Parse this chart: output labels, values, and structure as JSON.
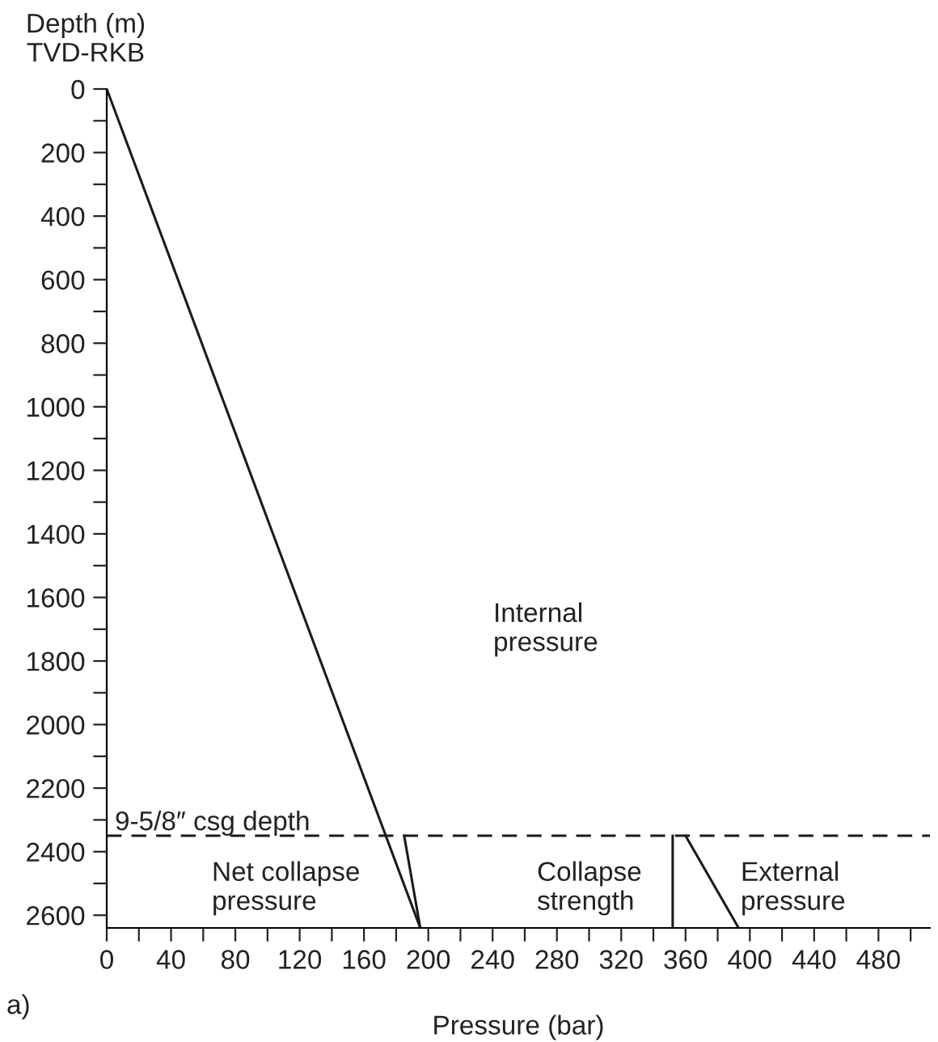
{
  "chart_data": {
    "type": "line",
    "xlabel": "Pressure (bar)",
    "ylabel": "Depth (m)\nTVD-RKB",
    "series": [
      {
        "color": "#1a1a1a",
        "x": [
          0,
          195
        ],
        "values": [
          0,
          2640
        ]
      },
      {
        "color": "#1a1a1a",
        "x": [
          185,
          195
        ],
        "values": [
          2350,
          2640
        ]
      },
      {
        "color": "#1a1a1a",
        "x": [
          352,
          352
        ],
        "values": [
          2350,
          2640
        ]
      },
      {
        "color": "#1a1a1a",
        "x": [
          360,
          393
        ],
        "values": [
          2350,
          2640
        ]
      }
    ],
    "xlim": [
      0,
      512
    ],
    "ylim": [
      2640,
      0
    ],
    "xticks": [
      0,
      {
        "value": 20,
        "label": null
      },
      40,
      {
        "value": 60,
        "label": null
      },
      80,
      {
        "value": 100,
        "label": null
      },
      120,
      {
        "value": 140,
        "label": null
      },
      160,
      {
        "value": 180,
        "label": null
      },
      200,
      {
        "value": 220,
        "label": null
      },
      240,
      {
        "value": 260,
        "label": null
      },
      280,
      {
        "value": 300,
        "label": null
      },
      320,
      {
        "value": 340,
        "label": null
      },
      360,
      {
        "value": 380,
        "label": null
      },
      400,
      {
        "value": 420,
        "label": null
      },
      440,
      {
        "value": 460,
        "label": null
      },
      480,
      {
        "value": 500,
        "label": null
      }
    ],
    "yticks": [
      0,
      {
        "value": 100,
        "label": null
      },
      200,
      {
        "value": 300,
        "label": null
      },
      400,
      {
        "value": 500,
        "label": null
      },
      600,
      {
        "value": 700,
        "label": null
      },
      800,
      {
        "value": 900,
        "label": null
      },
      1000,
      {
        "value": 1100,
        "label": null
      },
      1200,
      {
        "value": 1300,
        "label": null
      },
      1400,
      {
        "value": 1500,
        "label": null
      },
      1600,
      {
        "value": 1700,
        "label": null
      },
      1800,
      {
        "value": 1900,
        "label": null
      },
      2000,
      {
        "value": 2100,
        "label": null
      },
      2200,
      {
        "value": 2300,
        "label": null
      },
      2400,
      {
        "value": 2500,
        "label": null
      },
      2600
    ],
    "ref_lines": [
      {
        "axis": "y",
        "value": 2350,
        "label": "9-5/8″ csg depth",
        "color": "#1a1a1a",
        "line_style": "dashed"
      }
    ],
    "annotations": [
      "a)",
      "Internal\npressure",
      "Net collapse\npressure",
      "Collapse\nstrength",
      "External\npressure"
    ],
    "grid": false,
    "legend": false,
    "line_style": "solid",
    "marker": "none"
  }
}
